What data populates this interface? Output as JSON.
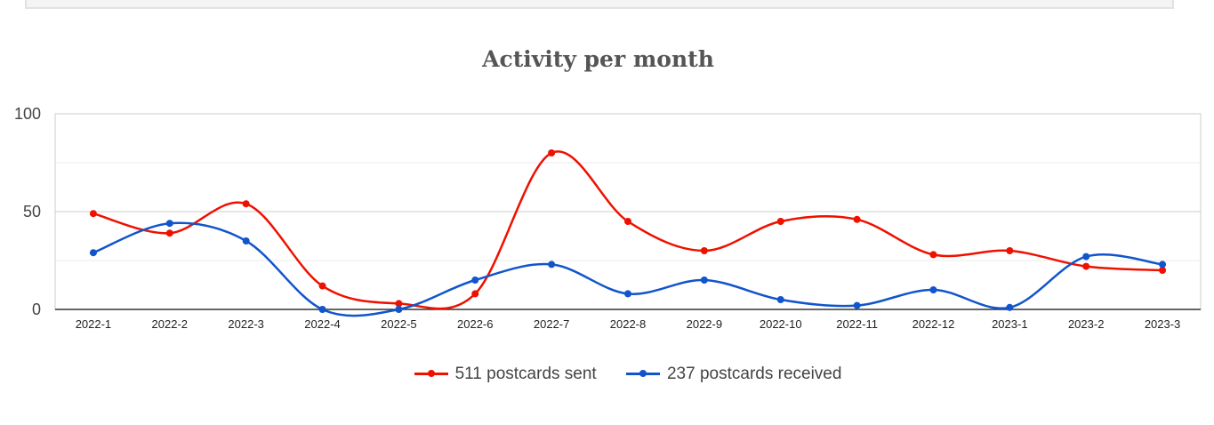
{
  "chart_data": {
    "type": "line",
    "title": "Activity per month",
    "categories": [
      "2022-1",
      "2022-2",
      "2022-3",
      "2022-4",
      "2022-5",
      "2022-6",
      "2022-7",
      "2022-8",
      "2022-9",
      "2022-10",
      "2022-11",
      "2022-12",
      "2023-1",
      "2023-2",
      "2023-3"
    ],
    "ylim": [
      0,
      100
    ],
    "yticks": [
      "0",
      "50",
      "100"
    ],
    "grid": true,
    "legend_position": "bottom",
    "series": [
      {
        "name": "511 postcards sent",
        "color": "#ee1100",
        "values": [
          49,
          39,
          54,
          12,
          3,
          8,
          80,
          45,
          30,
          45,
          46,
          28,
          30,
          22,
          20
        ]
      },
      {
        "name": "237 postcards received",
        "color": "#1155cc",
        "values": [
          29,
          44,
          35,
          0,
          0,
          15,
          23,
          8,
          15,
          5,
          2,
          10,
          1,
          27,
          23
        ]
      }
    ]
  }
}
